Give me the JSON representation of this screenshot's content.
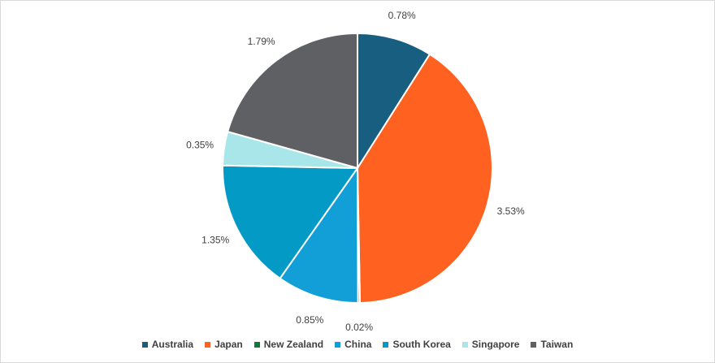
{
  "chart_data": {
    "type": "pie",
    "categories": [
      "Australia",
      "Japan",
      "New Zealand",
      "China",
      "South Korea",
      "Singapore",
      "Taiwan"
    ],
    "values": [
      0.78,
      3.53,
      0.02,
      0.85,
      1.35,
      0.35,
      1.79
    ],
    "data_labels": [
      "0.78%",
      "3.53%",
      "0.02%",
      "0.85%",
      "1.35%",
      "0.35%",
      "1.79%"
    ],
    "colors": [
      "#175e80",
      "#fe6120",
      "#0b7a3b",
      "#129fd7",
      "#039bc6",
      "#a9e6ea",
      "#5f6064"
    ],
    "legend_position": "bottom",
    "title": ""
  }
}
